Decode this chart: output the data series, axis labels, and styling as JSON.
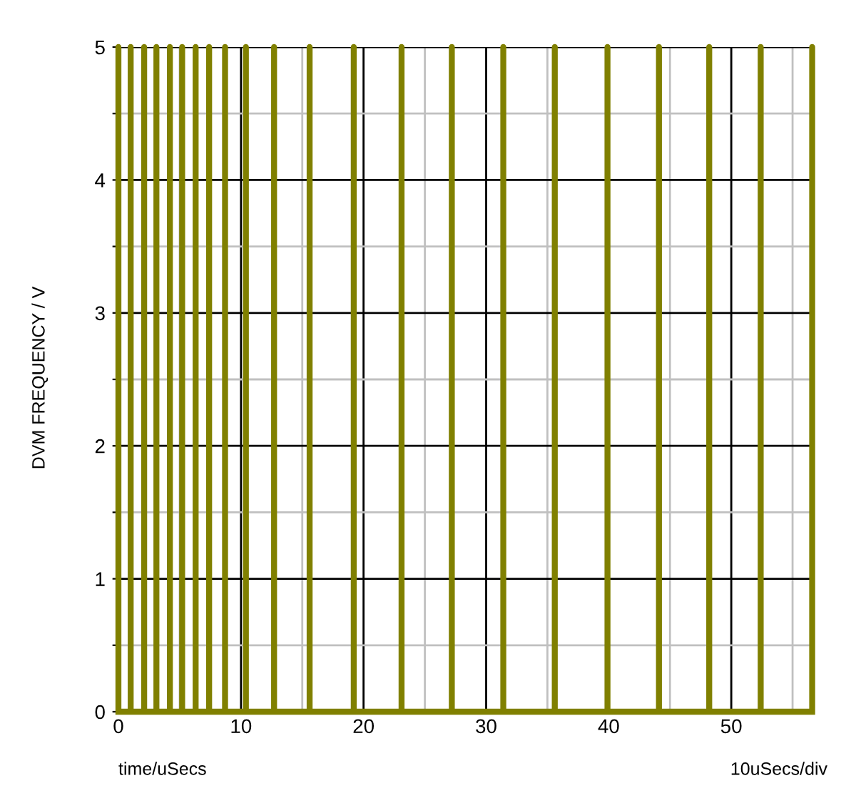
{
  "chart_data": {
    "type": "line",
    "ylabel": "DVM FREQUENCY / V",
    "xlabel": "time/uSecs",
    "annotations": [
      "10uSecs/div"
    ],
    "series": [
      {
        "color": "#808000",
        "x": [
          0,
          0,
          0,
          1.0,
          1.0,
          1.0,
          2.1,
          2.1,
          2.1,
          3.1,
          3.1,
          3.1,
          4.2,
          4.2,
          4.2,
          5.2,
          5.2,
          5.2,
          6.3,
          6.3,
          6.3,
          7.4,
          7.4,
          7.4,
          8.7,
          8.7,
          8.7,
          10.4,
          10.4,
          10.4,
          12.7,
          12.7,
          12.7,
          15.6,
          15.6,
          15.6,
          19.2,
          19.2,
          19.2,
          23.1,
          23.1,
          23.1,
          27.2,
          27.2,
          27.2,
          31.4,
          31.4,
          31.4,
          35.6,
          35.6,
          35.6,
          39.9,
          39.9,
          39.9,
          44.1,
          44.1,
          44.1,
          48.2,
          48.2,
          48.2,
          52.4,
          52.4,
          52.4,
          56.6,
          56.6,
          56.6
        ],
        "values": [
          0,
          5,
          0,
          0,
          5,
          0,
          0,
          5,
          0,
          0,
          5,
          0,
          0,
          5,
          0,
          0,
          5,
          0,
          0,
          5,
          0,
          0,
          5,
          0,
          0,
          5,
          0,
          0,
          5,
          0,
          0,
          5,
          0,
          0,
          5,
          0,
          0,
          5,
          0,
          0,
          5,
          0,
          0,
          5,
          0,
          0,
          5,
          0,
          0,
          5,
          0,
          0,
          5,
          0,
          0,
          5,
          0,
          0,
          5,
          0,
          0,
          5,
          0,
          0,
          5,
          0
        ]
      }
    ],
    "xlim": [
      0,
      56.8
    ],
    "ylim": [
      0,
      5
    ],
    "xticks": [
      0,
      {
        "value": 5,
        "label": null
      },
      10,
      {
        "value": 15,
        "label": null
      },
      20,
      {
        "value": 25,
        "label": null
      },
      30,
      {
        "value": 35,
        "label": null
      },
      40,
      {
        "value": 45,
        "label": null
      },
      50,
      {
        "value": 55,
        "label": null
      }
    ],
    "yticks": [
      0,
      {
        "value": 0.5,
        "label": null
      },
      1,
      {
        "value": 1.5,
        "label": null
      },
      2,
      {
        "value": 2.5,
        "label": null
      },
      3,
      {
        "value": 3.5,
        "label": null
      },
      4,
      {
        "value": 4.5,
        "label": null
      },
      5
    ],
    "grid": true,
    "legend": false,
    "marker": "none",
    "line_style": "solid"
  }
}
